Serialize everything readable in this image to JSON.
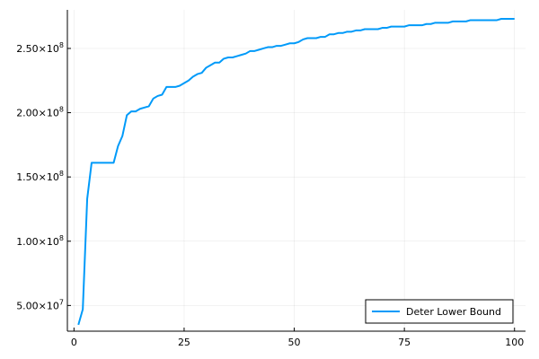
{
  "chart_data": {
    "type": "line",
    "title": "",
    "xlabel": "",
    "ylabel": "",
    "xlim": [
      1,
      100
    ],
    "ylim": [
      30000000,
      280000000
    ],
    "grid": true,
    "legend_position": "bottom-right",
    "x_ticks": [
      {
        "value": 0,
        "label": "0"
      },
      {
        "value": 25,
        "label": "25"
      },
      {
        "value": 50,
        "label": "50"
      },
      {
        "value": 75,
        "label": "75"
      },
      {
        "value": 100,
        "label": "100"
      }
    ],
    "y_ticks": [
      {
        "value": 50000000,
        "mantissa": "5.00×10",
        "exponent": "7"
      },
      {
        "value": 100000000,
        "mantissa": "1.00×10",
        "exponent": "8"
      },
      {
        "value": 150000000,
        "mantissa": "1.50×10",
        "exponent": "8"
      },
      {
        "value": 200000000,
        "mantissa": "2.00×10",
        "exponent": "8"
      },
      {
        "value": 250000000,
        "mantissa": "2.50×10",
        "exponent": "8"
      }
    ],
    "series": [
      {
        "name": "Deter Lower Bound",
        "color": "#009af9",
        "x": [
          1,
          2,
          3,
          4,
          5,
          6,
          7,
          8,
          9,
          10,
          11,
          12,
          13,
          14,
          15,
          16,
          17,
          18,
          19,
          20,
          21,
          22,
          23,
          24,
          25,
          26,
          27,
          28,
          29,
          30,
          31,
          32,
          33,
          34,
          35,
          36,
          37,
          38,
          39,
          40,
          41,
          42,
          43,
          44,
          45,
          46,
          47,
          48,
          49,
          50,
          51,
          52,
          53,
          54,
          55,
          56,
          57,
          58,
          59,
          60,
          61,
          62,
          63,
          64,
          65,
          66,
          67,
          68,
          69,
          70,
          71,
          72,
          73,
          74,
          75,
          76,
          77,
          78,
          79,
          80,
          81,
          82,
          83,
          84,
          85,
          86,
          87,
          88,
          89,
          90,
          91,
          92,
          93,
          94,
          95,
          96,
          97,
          98,
          99,
          100
        ],
        "y": [
          35000000,
          47000000,
          133000000,
          161000000,
          161000000,
          161000000,
          161000000,
          161000000,
          161000000,
          174000000,
          182000000,
          198000000,
          201000000,
          201000000,
          203000000,
          204000000,
          205000000,
          211000000,
          213000000,
          214000000,
          220000000,
          220000000,
          220000000,
          221000000,
          223000000,
          225000000,
          228000000,
          230000000,
          231000000,
          235000000,
          237000000,
          239000000,
          239000000,
          242000000,
          243000000,
          243000000,
          244000000,
          245000000,
          246000000,
          248000000,
          248000000,
          249000000,
          250000000,
          251000000,
          251000000,
          252000000,
          252000000,
          253000000,
          254000000,
          254000000,
          255000000,
          257000000,
          258000000,
          258000000,
          258000000,
          259000000,
          259000000,
          261000000,
          261000000,
          262000000,
          262000000,
          263000000,
          263000000,
          264000000,
          264000000,
          265000000,
          265000000,
          265000000,
          265000000,
          266000000,
          266000000,
          267000000,
          267000000,
          267000000,
          267000000,
          268000000,
          268000000,
          268000000,
          268000000,
          269000000,
          269000000,
          270000000,
          270000000,
          270000000,
          270000000,
          271000000,
          271000000,
          271000000,
          271000000,
          272000000,
          272000000,
          272000000,
          272000000,
          272000000,
          272000000,
          272000000,
          273000000,
          273000000,
          273000000,
          273000000
        ]
      }
    ]
  }
}
